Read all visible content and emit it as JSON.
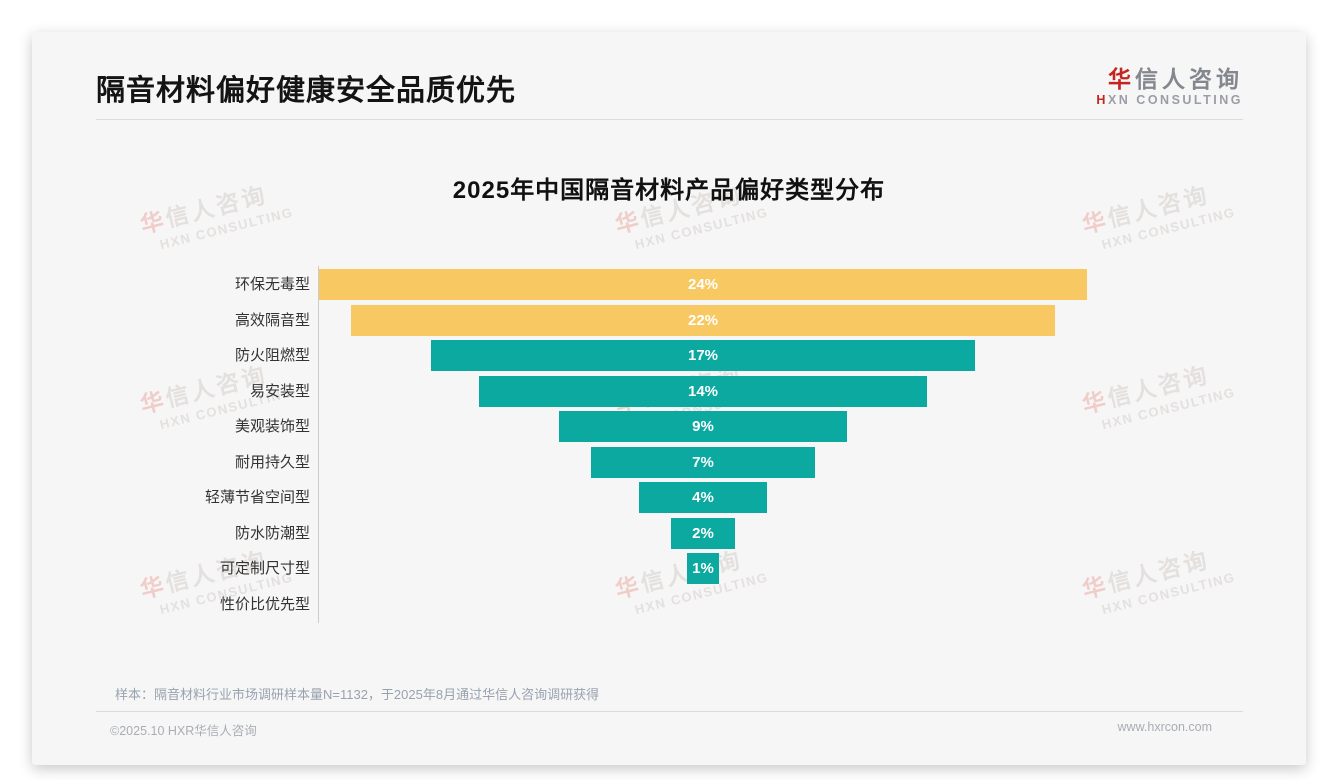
{
  "header": {
    "title": "隔音材料偏好健康安全品质优先"
  },
  "logo": {
    "cn_first": "华",
    "cn_rest": "信人咨询",
    "en_first": "H",
    "en_rest": "XN CONSULTING"
  },
  "watermark": {
    "cn_first": "华",
    "cn_rest": "信人咨询",
    "en": "HXN CONSULTING"
  },
  "chart_data": {
    "type": "bar",
    "orientation": "horizontal-centered-funnel",
    "title": "2025年中国隔音材料产品偏好类型分布",
    "categories": [
      "环保无毒型",
      "高效隔音型",
      "防火阻燃型",
      "易安装型",
      "美观装饰型",
      "耐用持久型",
      "轻薄节省空间型",
      "防水防潮型",
      "可定制尺寸型",
      "性价比优先型"
    ],
    "values": [
      24,
      22,
      17,
      14,
      9,
      7,
      4,
      2,
      1,
      0
    ],
    "labels": [
      "24%",
      "22%",
      "17%",
      "14%",
      "9%",
      "7%",
      "4%",
      "2%",
      "1%",
      ""
    ],
    "xlim": [
      0,
      24
    ],
    "grid": false,
    "legend": null,
    "highlight_count": 2,
    "highlight_color": "#F8C862",
    "base_color": "#0CA9A0",
    "value_label_color": "#ffffff",
    "axis_color": "#cccccc"
  },
  "footnote": "样本：隔音材料行业市场调研样本量N=1132，于2025年8月通过华信人咨询调研获得",
  "footer": {
    "left": "©2025.10 HXR华信人咨询",
    "right": "www.hxrcon.com"
  },
  "colors": {
    "brand_red": "#C3261F",
    "card_background": "#F6F6F7",
    "watermark_pink": "#EEC0BA",
    "watermark_gray": "#DED9D6"
  }
}
